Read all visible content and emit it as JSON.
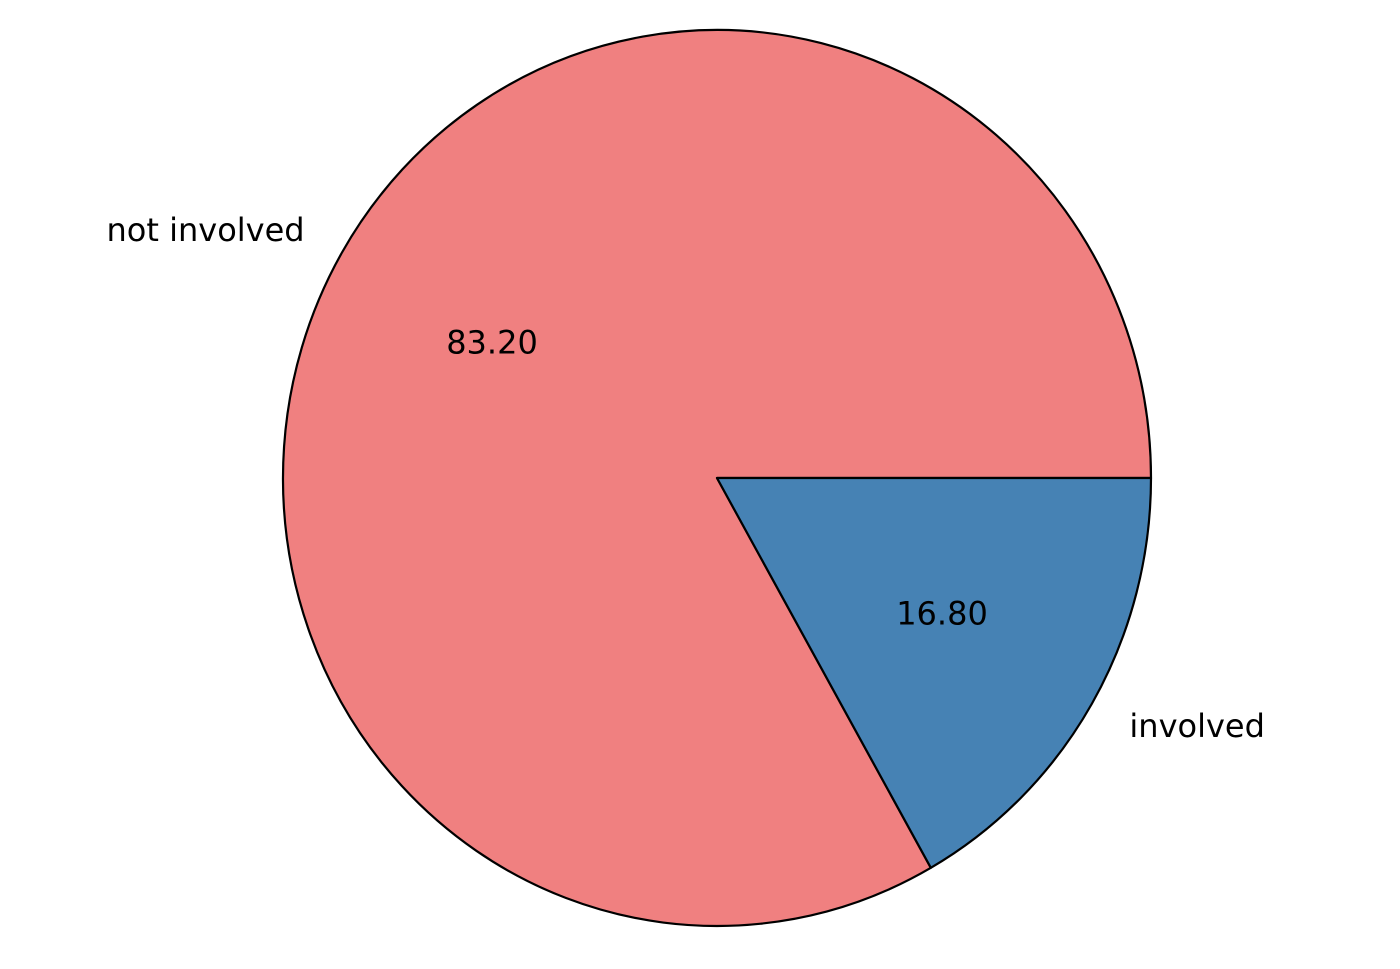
{
  "chart_data": {
    "type": "pie",
    "title": "",
    "labels": [
      "not involved",
      "involved"
    ],
    "values": [
      83.2,
      16.8
    ],
    "value_labels": [
      "83.20",
      "16.80"
    ],
    "colors": [
      "#f08080",
      "#4682b4"
    ],
    "edge_color": "#000000",
    "start_angle_deg": 0,
    "direction": "counterclockwise",
    "legend": "none"
  }
}
